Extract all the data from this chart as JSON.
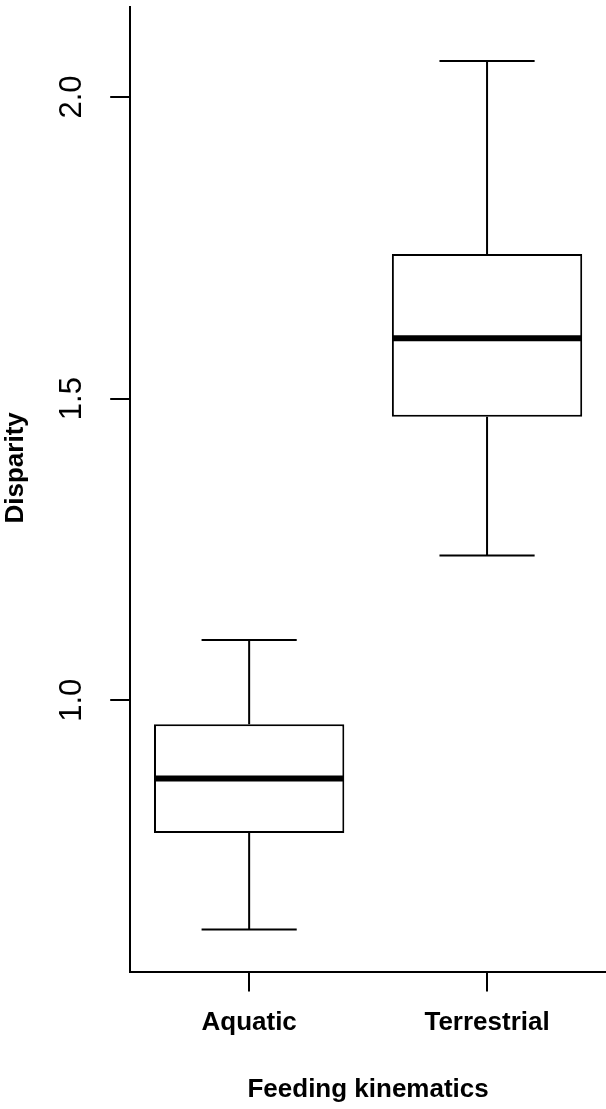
{
  "chart_data": {
    "type": "box",
    "xlabel": "Feeding kinematics",
    "ylabel": "Disparity",
    "categories": [
      "Aquatic",
      "Terrestrial"
    ],
    "boxes": [
      {
        "low": 0.62,
        "q1": 0.78,
        "median": 0.87,
        "q3": 0.96,
        "high": 1.1
      },
      {
        "low": 1.24,
        "q1": 1.47,
        "median": 1.6,
        "q3": 1.74,
        "high": 2.06
      }
    ],
    "color": "#000000",
    "ylim": [
      0.55,
      2.15
    ],
    "yticks": [
      {
        "value": 1,
        "label": "1.0"
      },
      1.5,
      {
        "value": 2,
        "label": "2.0"
      }
    ]
  }
}
